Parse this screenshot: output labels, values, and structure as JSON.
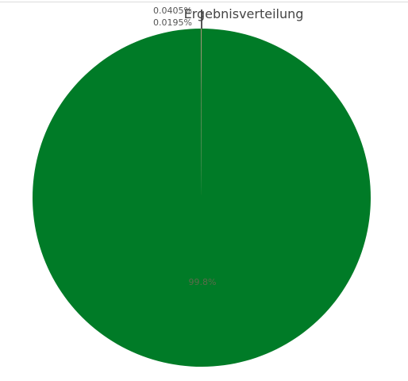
{
  "chart_data": {
    "type": "pie",
    "title": "Ergebnisverteilung",
    "slices": [
      {
        "label": "99.8%",
        "value": 99.8,
        "color": "#007b27"
      },
      {
        "label": "0.0405%",
        "value": 0.0405,
        "color": "#c8742a"
      },
      {
        "label": "0.0195%",
        "value": 0.0195,
        "color": "#6a6a9a"
      }
    ],
    "legend": false
  }
}
